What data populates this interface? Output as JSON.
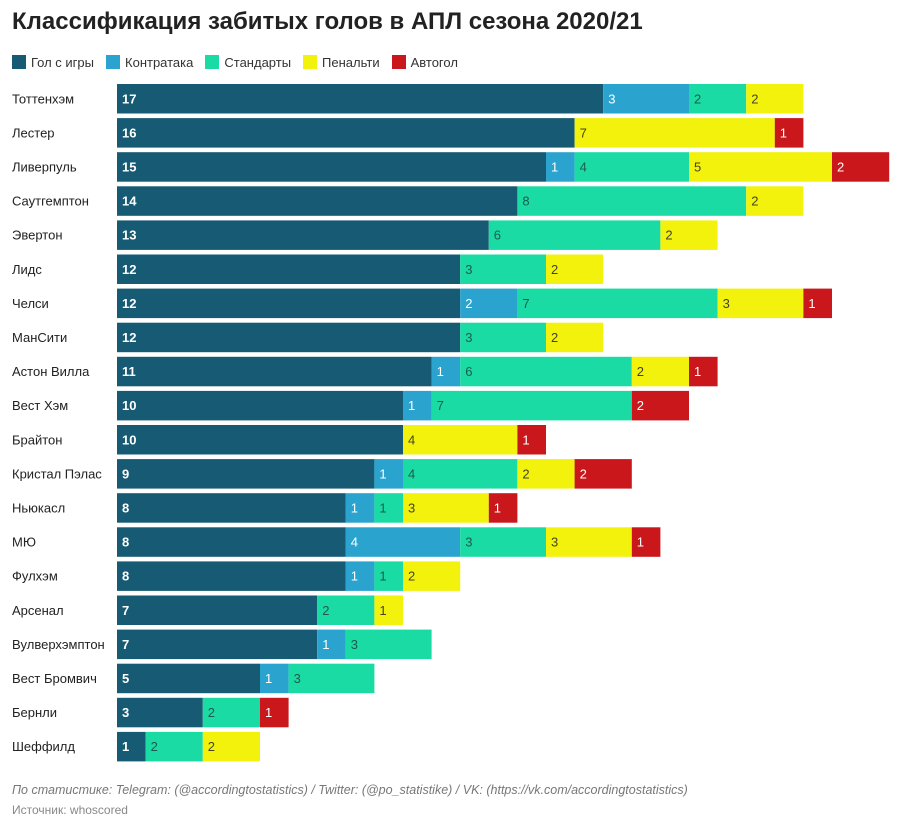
{
  "chart_data": {
    "type": "bar",
    "orientation": "horizontal",
    "stacked": true,
    "title": "Классификация забитых голов в АПЛ сезона 2020/21",
    "legend_position": "top-left",
    "grid": false,
    "series": [
      {
        "name": "Гол с игры",
        "color": "#175a73",
        "label_color": "#ffffff",
        "values": [
          17,
          16,
          15,
          14,
          13,
          12,
          12,
          12,
          11,
          10,
          10,
          9,
          8,
          8,
          8,
          7,
          7,
          5,
          3,
          1
        ]
      },
      {
        "name": "Контратака",
        "color": "#2aa3cf",
        "label_color": "#ffffff",
        "values": [
          3,
          0,
          1,
          0,
          0,
          0,
          2,
          0,
          1,
          1,
          0,
          1,
          1,
          4,
          1,
          0,
          1,
          1,
          0,
          0
        ]
      },
      {
        "name": "Стандарты",
        "color": "#19dba3",
        "label_color": "#1e5a50",
        "values": [
          2,
          0,
          4,
          8,
          6,
          3,
          7,
          3,
          6,
          7,
          0,
          4,
          1,
          3,
          1,
          2,
          3,
          3,
          2,
          2
        ]
      },
      {
        "name": "Пенальти",
        "color": "#f2f20c",
        "label_color": "#444422",
        "values": [
          2,
          7,
          5,
          2,
          2,
          2,
          3,
          2,
          2,
          0,
          4,
          2,
          3,
          3,
          2,
          1,
          0,
          0,
          0,
          2
        ]
      },
      {
        "name": "Автогол",
        "color": "#c9171c",
        "label_color": "#ffffff",
        "values": [
          0,
          1,
          2,
          0,
          0,
          0,
          1,
          0,
          1,
          2,
          1,
          2,
          1,
          1,
          0,
          0,
          0,
          0,
          1,
          0
        ]
      }
    ],
    "categories": [
      "Тоттенхэм",
      "Лестер",
      "Ливерпуль",
      "Саутгемптон",
      "Эвертон",
      "Лидс",
      "Челси",
      "МанСити",
      "Астон Вилла",
      "Вест Хэм",
      "Брайтон",
      "Кристал Пэлас",
      "Ньюкасл",
      "МЮ",
      "Фулхэм",
      "Арсенал",
      "Вулверхэмптон",
      "Вест Бромвич",
      "Бернли",
      "Шеффилд"
    ]
  },
  "footer": {
    "note": "По статистике: Telegram: (@accordingtostatistics) / Twitter: (@po_statistike) / VK: (https://vk.com/accordingtostatistics)",
    "source": "Источник: whoscored"
  }
}
